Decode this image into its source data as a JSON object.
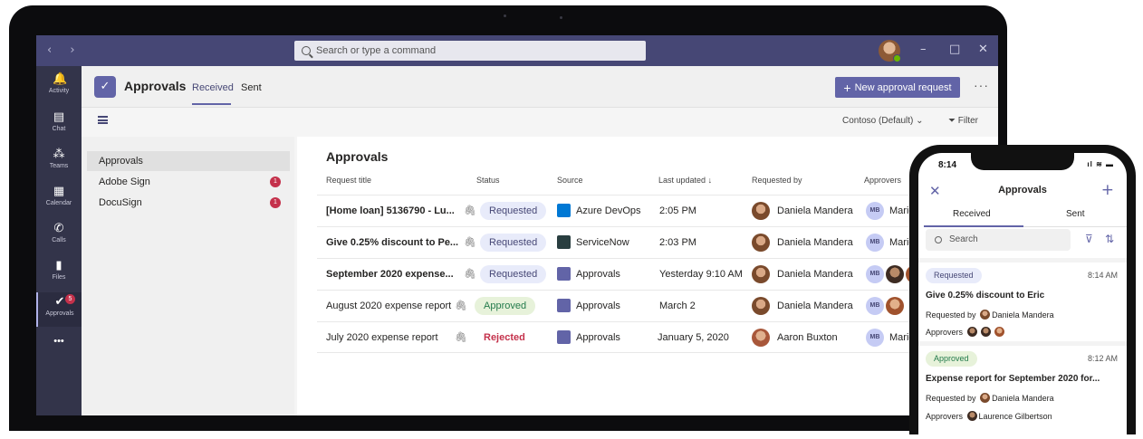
{
  "search": {
    "placeholder": "Search or type a command"
  },
  "window": {
    "minimize": "–",
    "maximize": "□",
    "close": "✕",
    "nav": "‹ ›"
  },
  "rail": {
    "items": [
      {
        "label": "Activity",
        "icon": "bell-icon"
      },
      {
        "label": "Chat",
        "icon": "chat-icon"
      },
      {
        "label": "Teams",
        "icon": "teams-icon"
      },
      {
        "label": "Calendar",
        "icon": "calendar-icon"
      },
      {
        "label": "Calls",
        "icon": "phone-icon"
      },
      {
        "label": "Files",
        "icon": "file-icon"
      },
      {
        "label": "Approvals",
        "icon": "approvals-icon",
        "badge": "5"
      }
    ],
    "more": "•••"
  },
  "app": {
    "title": "Approvals",
    "tabs": [
      "Received",
      "Sent"
    ],
    "new_button": "New approval request",
    "more": "···"
  },
  "toolbar": {
    "org": "Contoso (Default)",
    "filter": "Filter"
  },
  "left_list": [
    {
      "label": "Approvals",
      "badge": ""
    },
    {
      "label": "Adobe Sign",
      "badge": "1"
    },
    {
      "label": "DocuSign",
      "badge": "1"
    }
  ],
  "main": {
    "title": "Approvals",
    "columns": [
      "Request title",
      "Status",
      "Source",
      "Last updated",
      "Requested by",
      "Approvers"
    ],
    "rows": [
      {
        "title": "[Home loan] 5136790 - Lu...",
        "bold": true,
        "status": "Requested",
        "source": "Azure DevOps",
        "updated": "2:05 PM",
        "requester": "Daniela Mandera",
        "approver": "Marie B"
      },
      {
        "title": "Give 0.25% discount to Pe...",
        "bold": true,
        "status": "Requested",
        "source": "ServiceNow",
        "updated": "2:03 PM",
        "requester": "Daniela Mandera",
        "approver": "Marie B"
      },
      {
        "title": "September 2020 expense...",
        "bold": true,
        "status": "Requested",
        "source": "Approvals",
        "updated": "Yesterday 9:10 AM",
        "requester": "Daniela Mandera",
        "approver": ""
      },
      {
        "title": "August 2020 expense report",
        "bold": false,
        "status": "Approved",
        "source": "Approvals",
        "updated": "March 2",
        "requester": "Daniela Mandera",
        "approver": ""
      },
      {
        "title": "July 2020 expense report",
        "bold": false,
        "status": "Rejected",
        "source": "Approvals",
        "updated": "January 5, 2020",
        "requester": "Aaron Buxton",
        "approver": "Marie B"
      }
    ],
    "approver_initials": "MB"
  },
  "phone": {
    "time": "8:14",
    "title": "Approvals",
    "tabs": [
      "Received",
      "Sent"
    ],
    "search_placeholder": "Search",
    "cards": [
      {
        "status": "Requested",
        "time": "8:14 AM",
        "title": "Give 0.25% discount to Eric",
        "requested_by_label": "Requested by",
        "requester": "Daniela Mandera",
        "approvers_label": "Approvers",
        "approvers": ""
      },
      {
        "status": "Approved",
        "time": "8:12 AM",
        "title": "Expense report for September 2020 for...",
        "requested_by_label": "Requested by",
        "requester": "Daniela Mandera",
        "approvers_label": "Approvers",
        "approvers": "Laurence Gilbertson"
      }
    ]
  },
  "colors": {
    "teams_purple": "#6264a7",
    "titlebar": "#464775",
    "rail": "#33344a",
    "badge_red": "#c4314b",
    "approved_green": "#237b4b"
  }
}
